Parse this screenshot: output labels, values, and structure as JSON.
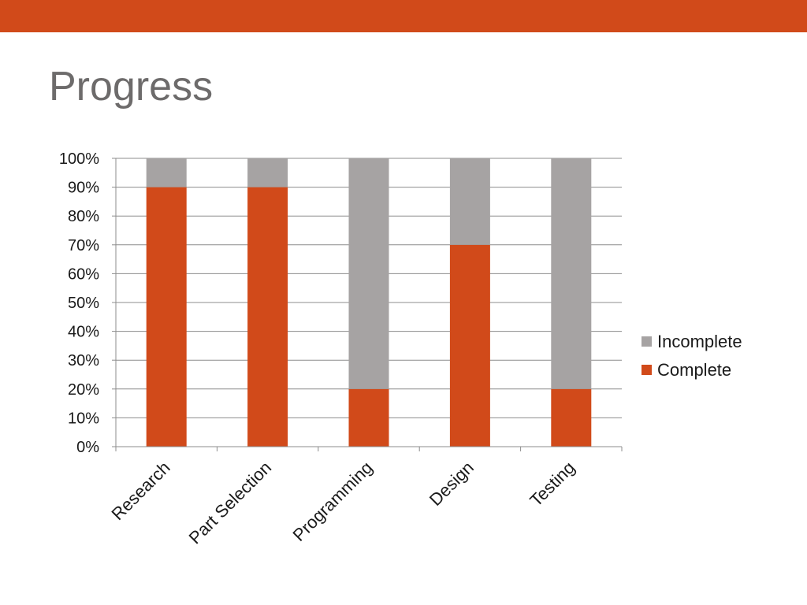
{
  "slide": {
    "title": "Progress",
    "accent_color": "#d14a1a"
  },
  "chart_data": {
    "type": "bar",
    "stacked": true,
    "categories": [
      "Research",
      "Part Selection",
      "Programming",
      "Design",
      "Testing"
    ],
    "series": [
      {
        "name": "Complete",
        "values": [
          90,
          90,
          20,
          70,
          20
        ],
        "color": "#d14a1a"
      },
      {
        "name": "Incomplete",
        "values": [
          10,
          10,
          80,
          30,
          80
        ],
        "color": "#a6a3a3"
      }
    ],
    "ylim": [
      0,
      100
    ],
    "yticks": [
      "0%",
      "10%",
      "20%",
      "30%",
      "40%",
      "50%",
      "60%",
      "70%",
      "80%",
      "90%",
      "100%"
    ],
    "grid": true,
    "legend": {
      "placement": "right",
      "order": [
        "Incomplete",
        "Complete"
      ]
    },
    "xlabel": "",
    "ylabel": ""
  }
}
